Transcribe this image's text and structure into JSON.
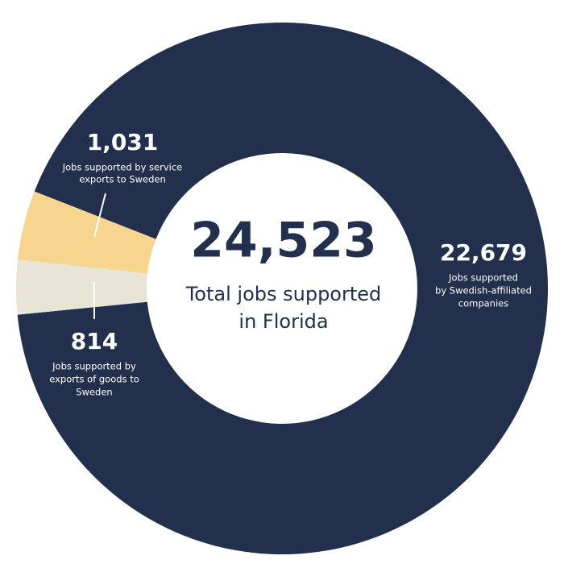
{
  "chart_data": {
    "type": "donut",
    "total": {
      "value": 24523,
      "label": "24,523"
    },
    "center_text": [
      "Total jobs supported",
      "in Florida"
    ],
    "categories": [
      [
        "Jobs supported",
        "by Swedish-affiliated",
        "companies"
      ],
      [
        "Jobs supported by",
        "exports of goods to",
        "Sweden"
      ],
      [
        "Jobs supported by service",
        "exports to Sweden"
      ]
    ],
    "values": [
      22679,
      814,
      1031
    ],
    "value_labels": [
      "22,679",
      "814",
      "1,031"
    ],
    "colors": [
      "#22304d",
      "#e8e4d6",
      "#f6d58e"
    ]
  }
}
